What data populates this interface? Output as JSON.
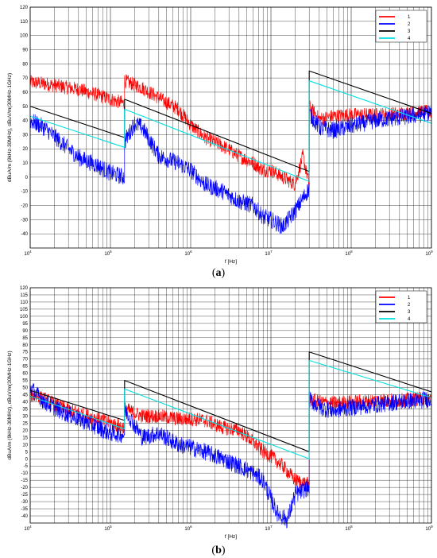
{
  "chart_data": [
    {
      "panel": "(a)",
      "caption": {
        "open": "(",
        "letter": "a",
        "close": ")"
      },
      "type": "line",
      "xscale": "log",
      "xlim": [
        10000,
        1000000000
      ],
      "ylim": [
        -50,
        120
      ],
      "xlabel": "f [Hz]",
      "ylabel": "dBuA/m (9kHz-30MHz), dBuV/m(30MHz-1GHz)",
      "x_ticks": [
        {
          "base": "10",
          "exp": "4"
        },
        {
          "base": "10",
          "exp": "5"
        },
        {
          "base": "10",
          "exp": "6"
        },
        {
          "base": "10",
          "exp": "7"
        },
        {
          "base": "10",
          "exp": "8"
        },
        {
          "base": "10",
          "exp": "9"
        }
      ],
      "y_ticks": [
        "120",
        "110",
        "100",
        "90",
        "80",
        "70",
        "60",
        "50",
        "40",
        "30",
        "20",
        "10",
        "0",
        "-10",
        "-20",
        "-30",
        "-40"
      ],
      "y_tick_values": [
        120,
        110,
        100,
        90,
        80,
        70,
        60,
        50,
        40,
        30,
        20,
        10,
        0,
        -10,
        -20,
        -30,
        -40
      ],
      "grid": true,
      "legend_position": "top-right",
      "series": [
        {
          "name": "1",
          "color": "#ff0000",
          "x": [
            10000,
            15000,
            25000,
            40000,
            70000,
            100000,
            150000,
            150000,
            250000,
            400000,
            700000,
            1000000,
            1500000,
            2500000,
            4000000,
            6000000,
            8000000,
            10000000,
            14000000,
            20000000,
            25000000,
            30000000,
            30000000,
            40000000,
            60000000,
            100000000,
            200000000,
            400000000,
            700000000,
            1000000000
          ],
          "y": [
            67,
            66,
            64,
            62,
            58,
            55,
            52,
            68,
            63,
            56,
            48,
            37,
            28,
            22,
            15,
            10,
            5,
            5,
            0,
            -5,
            15,
            -5,
            50,
            41,
            43,
            44,
            44,
            45,
            46,
            46
          ]
        },
        {
          "name": "2",
          "color": "#0000ff",
          "x": [
            10000,
            15000,
            25000,
            40000,
            70000,
            100000,
            150000,
            150000,
            200000,
            250000,
            400000,
            700000,
            1000000,
            1500000,
            2500000,
            4000000,
            6000000,
            8000000,
            10000000,
            14000000,
            20000000,
            30000000,
            30000000,
            40000000,
            60000000,
            100000000,
            200000000,
            400000000,
            700000000,
            1000000000
          ],
          "y": [
            40,
            35,
            24,
            14,
            8,
            3,
            0,
            25,
            38,
            35,
            15,
            10,
            5,
            -5,
            -10,
            -17,
            -20,
            -28,
            -30,
            -35,
            -24,
            -8,
            45,
            35,
            33,
            36,
            40,
            42,
            44,
            46
          ]
        },
        {
          "name": "3",
          "color": "#000000",
          "x": [
            10000,
            150000,
            150000,
            30000000,
            30000000,
            1000000000
          ],
          "y": [
            50,
            28,
            55,
            4,
            75,
            45
          ]
        },
        {
          "name": "4",
          "color": "#00e0e0",
          "x": [
            10000,
            150000,
            150000,
            30000000,
            30000000,
            1000000000
          ],
          "y": [
            43,
            21,
            48,
            -3,
            68,
            38
          ]
        }
      ]
    },
    {
      "panel": "(b)",
      "caption": {
        "open": "(",
        "letter": "b",
        "close": ")"
      },
      "type": "line",
      "xscale": "log",
      "xlim": [
        10000,
        1000000000
      ],
      "ylim": [
        -45,
        120
      ],
      "xlabel": "f [Hz]",
      "ylabel": "dBuA/m (9kHz-30MHz), dBuV/m(30MHz-1GHz)",
      "x_ticks": [
        {
          "base": "10",
          "exp": "4"
        },
        {
          "base": "10",
          "exp": "5"
        },
        {
          "base": "10",
          "exp": "6"
        },
        {
          "base": "10",
          "exp": "7"
        },
        {
          "base": "10",
          "exp": "8"
        },
        {
          "base": "10",
          "exp": "9"
        }
      ],
      "y_ticks": [
        "120",
        "115",
        "110",
        "105",
        "100",
        "95",
        "90",
        "85",
        "80",
        "75",
        "70",
        "65",
        "60",
        "55",
        "50",
        "45",
        "40",
        "35",
        "30",
        "25",
        "20",
        "15",
        "10",
        "5",
        "0",
        "-5",
        "-10",
        "-15",
        "-20",
        "-25",
        "-30",
        "-35",
        "-40"
      ],
      "y_tick_values": [
        120,
        115,
        110,
        105,
        100,
        95,
        90,
        85,
        80,
        75,
        70,
        65,
        60,
        55,
        50,
        45,
        40,
        35,
        30,
        25,
        20,
        15,
        10,
        5,
        0,
        -5,
        -10,
        -15,
        -20,
        -25,
        -30,
        -35,
        -40
      ],
      "grid": true,
      "legend_position": "top-right",
      "series": [
        {
          "name": "1",
          "color": "#ff0000",
          "x": [
            10000,
            15000,
            25000,
            40000,
            70000,
            100000,
            150000,
            150000,
            250000,
            400000,
            700000,
            1000000,
            1500000,
            2500000,
            4000000,
            6000000,
            8000000,
            10000000,
            14000000,
            20000000,
            30000000,
            30000000,
            40000000,
            60000000,
            100000000,
            200000000,
            400000000,
            700000000,
            1000000000
          ],
          "y": [
            45,
            42,
            36,
            32,
            28,
            25,
            22,
            35,
            30,
            30,
            28,
            28,
            27,
            22,
            20,
            12,
            5,
            2,
            -5,
            -15,
            -18,
            42,
            40,
            39,
            40,
            41,
            41,
            42,
            42
          ]
        },
        {
          "name": "2",
          "color": "#0000ff",
          "x": [
            10000,
            15000,
            25000,
            40000,
            70000,
            100000,
            150000,
            150000,
            250000,
            400000,
            700000,
            1000000,
            1500000,
            2500000,
            4000000,
            6000000,
            8000000,
            10000000,
            12000000,
            16000000,
            20000000,
            30000000,
            30000000,
            40000000,
            60000000,
            100000000,
            200000000,
            400000000,
            700000000,
            1000000000
          ],
          "y": [
            50,
            40,
            33,
            28,
            22,
            18,
            17,
            35,
            15,
            18,
            10,
            8,
            5,
            0,
            -5,
            -10,
            -15,
            -28,
            -38,
            -43,
            -25,
            -20,
            42,
            36,
            34,
            36,
            38,
            40,
            41,
            42
          ]
        },
        {
          "name": "3",
          "color": "#000000",
          "x": [
            10000,
            150000,
            150000,
            30000000,
            30000000,
            1000000000
          ],
          "y": [
            48,
            27,
            55,
            5,
            75,
            47
          ]
        },
        {
          "name": "4",
          "color": "#00e0e0",
          "x": [
            10000,
            150000,
            150000,
            30000000,
            30000000,
            1000000000
          ],
          "y": [
            44,
            21,
            49,
            0,
            69,
            43
          ]
        }
      ]
    }
  ]
}
